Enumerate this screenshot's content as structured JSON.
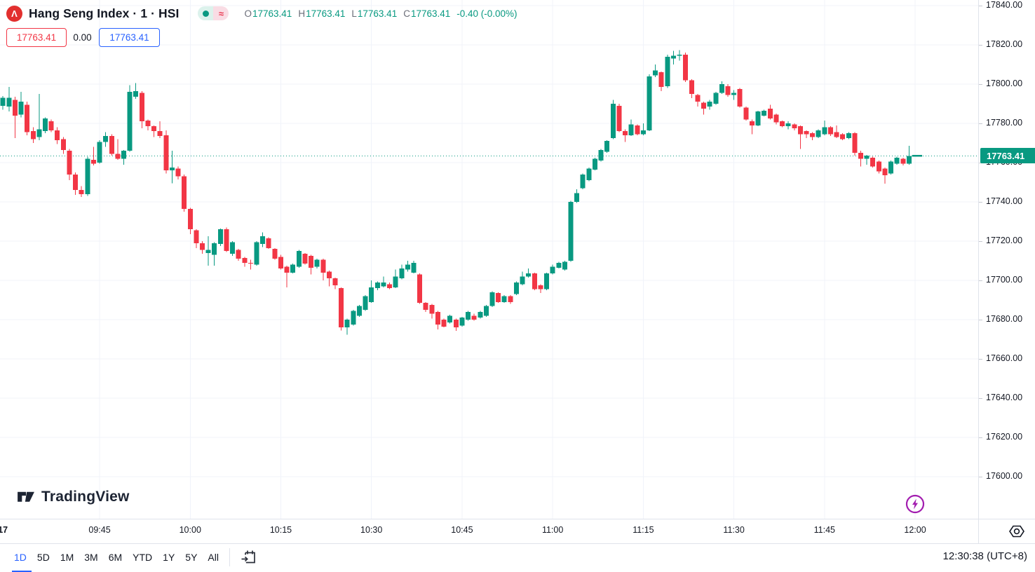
{
  "header": {
    "title": "Hang Seng Index · 1 · HSI",
    "logo_letter": "Λ",
    "status_pill": {
      "approx": "≈"
    },
    "ohlc": {
      "o_label": "O",
      "o": "17763.41",
      "h_label": "H",
      "h": "17763.41",
      "l_label": "L",
      "l": "17763.41",
      "c_label": "C",
      "c": "17763.41",
      "change": "-0.40 (-0.00%)"
    },
    "bid": "17763.41",
    "spread": "0.00",
    "ask": "17763.41"
  },
  "footer": {
    "brand": "TradingView"
  },
  "status": {
    "clock": "12:30:38 (UTC+8)"
  },
  "toolbar": {
    "ranges": [
      "1D",
      "5D",
      "1M",
      "3M",
      "6M",
      "YTD",
      "1Y",
      "5Y",
      "All"
    ],
    "active": "1D"
  },
  "colors": {
    "up": "#089981",
    "down": "#F23645",
    "grid": "#F0F3FA",
    "blue": "#2962FF",
    "red": "#F23645",
    "purple": "#A21CAF",
    "text": "#131722",
    "muted": "#787B86"
  },
  "chart_data": {
    "type": "candlestick",
    "title": "Hang Seng Index 1-minute candles",
    "symbol": "HSI",
    "interval_minutes": 1,
    "session_start": "09:30",
    "last_price": 17763.41,
    "last_price_label": "17763.41",
    "ylim": [
      17590,
      17842
    ],
    "grid": true,
    "price_labels": [
      "17840.00",
      "17820.00",
      "17800.00",
      "17780.00",
      "17760.00",
      "17740.00",
      "17720.00",
      "17700.00",
      "17680.00",
      "17660.00",
      "17640.00",
      "17620.00",
      "17600.00"
    ],
    "x_ticks": [
      {
        "label": "17",
        "minute": -1,
        "day_marker": true
      },
      {
        "label": "09:45",
        "minute": 15
      },
      {
        "label": "10:00",
        "minute": 30
      },
      {
        "label": "10:15",
        "minute": 45
      },
      {
        "label": "10:30",
        "minute": 60
      },
      {
        "label": "10:45",
        "minute": 75
      },
      {
        "label": "11:00",
        "minute": 90
      },
      {
        "label": "11:15",
        "minute": 105
      },
      {
        "label": "11:30",
        "minute": 120
      },
      {
        "label": "11:45",
        "minute": 135
      },
      {
        "label": "12:00",
        "minute": 150
      }
    ],
    "first_minute": -1,
    "candles": [
      [
        17789,
        17794,
        17787,
        17793
      ],
      [
        17788.5,
        17798.5,
        17786,
        17793
      ],
      [
        17792,
        17793.5,
        17772.5,
        17784
      ],
      [
        17784.5,
        17796,
        17783,
        17791
      ],
      [
        17789.5,
        17791,
        17774,
        17775.5
      ],
      [
        17776,
        17778,
        17770,
        17772
      ],
      [
        17773,
        17795,
        17771.5,
        17777
      ],
      [
        17776,
        17783,
        17775,
        17782.5
      ],
      [
        17781,
        17782,
        17775.5,
        17776.5
      ],
      [
        17776.5,
        17778,
        17769.5,
        17771.5
      ],
      [
        17772,
        17773,
        17764.5,
        17766.5
      ],
      [
        17766,
        17767,
        17751,
        17754
      ],
      [
        17754,
        17755,
        17743.5,
        17746
      ],
      [
        17746,
        17748,
        17742.5,
        17744
      ],
      [
        17744,
        17763,
        17743,
        17762
      ],
      [
        17761.5,
        17768,
        17758.5,
        17759.5
      ],
      [
        17760,
        17771.5,
        17759.5,
        17770.5
      ],
      [
        17770.5,
        17775.5,
        17768,
        17773.5
      ],
      [
        17773.5,
        17774.5,
        17763.5,
        17764.5
      ],
      [
        17764.5,
        17772,
        17761.5,
        17762
      ],
      [
        17762,
        17766.5,
        17759,
        17766
      ],
      [
        17766,
        17799.5,
        17765.5,
        17796
      ],
      [
        17793.5,
        17800.5,
        17792.5,
        17796.5
      ],
      [
        17795.5,
        17796.5,
        17777.5,
        17781
      ],
      [
        17781.5,
        17782,
        17776.5,
        17778.5
      ],
      [
        17778.5,
        17779,
        17773,
        17776
      ],
      [
        17776,
        17781,
        17772.5,
        17773.5
      ],
      [
        17774,
        17776.5,
        17754.5,
        17756
      ],
      [
        17756,
        17766,
        17749.5,
        17757.5
      ],
      [
        17757,
        17758,
        17751.5,
        17753
      ],
      [
        17753,
        17754,
        17735,
        17736.5
      ],
      [
        17736.5,
        17737,
        17723.5,
        17726
      ],
      [
        17725.5,
        17726,
        17716.5,
        17719
      ],
      [
        17719,
        17720,
        17713.5,
        17715.5
      ],
      [
        17714,
        17722.5,
        17707.5,
        17715.5
      ],
      [
        17713,
        17719.5,
        17707.5,
        17719
      ],
      [
        17718.5,
        17726.5,
        17717.5,
        17726
      ],
      [
        17726,
        17727,
        17714.5,
        17715
      ],
      [
        17713.5,
        17720,
        17712.5,
        17719.5
      ],
      [
        17715.5,
        17716,
        17710,
        17711
      ],
      [
        17711.5,
        17712,
        17707,
        17709
      ],
      [
        17709,
        17710.5,
        17705.5,
        17708.5
      ],
      [
        17708,
        17720,
        17707.5,
        17719.5
      ],
      [
        17718.5,
        17724.5,
        17717,
        17722.5
      ],
      [
        17721.5,
        17722,
        17716,
        17716.5
      ],
      [
        17716,
        17716.5,
        17710.5,
        17711
      ],
      [
        17712,
        17713,
        17705.5,
        17706
      ],
      [
        17707,
        17707.5,
        17696.5,
        17704
      ],
      [
        17704,
        17708.5,
        17703.5,
        17708
      ],
      [
        17707,
        17715.5,
        17706.5,
        17715
      ],
      [
        17713.5,
        17714,
        17708,
        17708.5
      ],
      [
        17712.5,
        17713,
        17703,
        17706.5
      ],
      [
        17707,
        17711,
        17706,
        17710.5
      ],
      [
        17710.5,
        17711,
        17700,
        17704
      ],
      [
        17704.5,
        17705,
        17697,
        17701
      ],
      [
        17701,
        17701.5,
        17695.5,
        17697.5
      ],
      [
        17696,
        17696.5,
        17674.5,
        17676
      ],
      [
        17676,
        17680.5,
        17672.4,
        17680
      ],
      [
        17677.5,
        17685,
        17677,
        17684.5
      ],
      [
        17682,
        17687.5,
        17681.5,
        17687
      ],
      [
        17685,
        17692.5,
        17684.5,
        17692
      ],
      [
        17689,
        17700,
        17688.5,
        17696.5
      ],
      [
        17696,
        17699.5,
        17695,
        17699
      ],
      [
        17697,
        17702,
        17696.5,
        17699
      ],
      [
        17698,
        17699,
        17695.5,
        17696
      ],
      [
        17696.5,
        17705.5,
        17696,
        17702
      ],
      [
        17701,
        17708,
        17700.5,
        17706
      ],
      [
        17705.5,
        17710,
        17704.5,
        17708
      ],
      [
        17704,
        17710,
        17703.5,
        17709
      ],
      [
        17703,
        17703.5,
        17688,
        17688.5
      ],
      [
        17688.5,
        17689,
        17684,
        17685
      ],
      [
        17687.5,
        17688,
        17680.5,
        17683
      ],
      [
        17684,
        17684.5,
        17675,
        17677.5
      ],
      [
        17680,
        17680.5,
        17676,
        17676.5
      ],
      [
        17678.5,
        17682.5,
        17678,
        17682
      ],
      [
        17680,
        17680.5,
        17674.3,
        17676
      ],
      [
        17677,
        17681.5,
        17676.5,
        17681
      ],
      [
        17680,
        17684.5,
        17679.5,
        17684
      ],
      [
        17682,
        17683,
        17679.5,
        17680
      ],
      [
        17681,
        17684.5,
        17680.5,
        17684
      ],
      [
        17682,
        17687.5,
        17681.5,
        17687
      ],
      [
        17687,
        17694.5,
        17686.5,
        17694
      ],
      [
        17693.5,
        17694,
        17688.5,
        17689
      ],
      [
        17689,
        17692.5,
        17688.5,
        17692
      ],
      [
        17692,
        17692.5,
        17688,
        17689
      ],
      [
        17693,
        17699.5,
        17692.5,
        17699
      ],
      [
        17698,
        17704.5,
        17697.5,
        17702
      ],
      [
        17702,
        17706,
        17701.5,
        17703.5
      ],
      [
        17703.5,
        17704,
        17695,
        17695.5
      ],
      [
        17697.5,
        17698,
        17693.5,
        17695.5
      ],
      [
        17695.5,
        17704,
        17695,
        17703.5
      ],
      [
        17703.5,
        17708,
        17703,
        17707
      ],
      [
        17706.5,
        17709.5,
        17706,
        17709
      ],
      [
        17705.5,
        17710,
        17705,
        17709.5
      ],
      [
        17710,
        17740.5,
        17709.5,
        17740
      ],
      [
        17740,
        17746.5,
        17739.5,
        17744.5
      ],
      [
        17747,
        17754.5,
        17746.5,
        17754
      ],
      [
        17751,
        17757.5,
        17750.5,
        17757
      ],
      [
        17756.5,
        17762.5,
        17756,
        17762
      ],
      [
        17761,
        17767,
        17760.5,
        17766.5
      ],
      [
        17765.5,
        17771.5,
        17765,
        17771
      ],
      [
        17772.5,
        17792,
        17772,
        17790
      ],
      [
        17789,
        17790,
        17775.5,
        17776
      ],
      [
        17776,
        17777,
        17770.5,
        17774
      ],
      [
        17774,
        17782,
        17773.5,
        17779.5
      ],
      [
        17779,
        17779.5,
        17774,
        17774.5
      ],
      [
        17774.5,
        17780,
        17774,
        17776.5
      ],
      [
        17776.5,
        17805,
        17776,
        17804
      ],
      [
        17804.5,
        17810,
        17803.5,
        17807
      ],
      [
        17806,
        17806.5,
        17796.5,
        17798.5
      ],
      [
        17799,
        17815,
        17798,
        17814
      ],
      [
        17813,
        17817,
        17810,
        17814.5
      ],
      [
        17814.5,
        17817.4,
        17812,
        17815
      ],
      [
        17815,
        17816,
        17801,
        17802
      ],
      [
        17802,
        17802.5,
        17792.9,
        17795
      ],
      [
        17794.5,
        17795,
        17788.5,
        17791
      ],
      [
        17790.5,
        17791,
        17784.5,
        17787.5
      ],
      [
        17788.5,
        17792,
        17787,
        17791
      ],
      [
        17790,
        17796,
        17789.5,
        17795.5
      ],
      [
        17795.5,
        17801.5,
        17795,
        17800
      ],
      [
        17799,
        17800,
        17793.5,
        17794.5
      ],
      [
        17794.5,
        17797,
        17792,
        17795.5
      ],
      [
        17797.5,
        17798,
        17788,
        17788.5
      ],
      [
        17788,
        17788.5,
        17781.5,
        17782
      ],
      [
        17781,
        17782,
        17774.5,
        17779
      ],
      [
        17779,
        17786.5,
        17778.5,
        17786
      ],
      [
        17784,
        17787,
        17783.5,
        17786.5
      ],
      [
        17787.5,
        17789.5,
        17782,
        17782.5
      ],
      [
        17784.5,
        17785,
        17779.5,
        17780.5
      ],
      [
        17781,
        17781.5,
        17778,
        17778.5
      ],
      [
        17778.5,
        17781,
        17777,
        17780
      ],
      [
        17779.5,
        17780,
        17776.5,
        17777.5
      ],
      [
        17778.5,
        17779,
        17767,
        17774.5
      ],
      [
        17776,
        17776.5,
        17772.5,
        17774.5
      ],
      [
        17775,
        17775.5,
        17771.5,
        17773
      ],
      [
        17773,
        17777,
        17772.5,
        17776.5
      ],
      [
        17774.5,
        17781.5,
        17774,
        17778
      ],
      [
        17778,
        17778.5,
        17773.5,
        17774.5
      ],
      [
        17775.5,
        17779,
        17772.5,
        17773
      ],
      [
        17774.5,
        17775,
        17771.5,
        17772
      ],
      [
        17772.5,
        17775.5,
        17772,
        17775
      ],
      [
        17775,
        17775.5,
        17763.5,
        17765
      ],
      [
        17765,
        17766,
        17758,
        17762
      ],
      [
        17762,
        17764,
        17759,
        17763.5
      ],
      [
        17762.5,
        17763,
        17757.5,
        17758
      ],
      [
        17760.5,
        17761,
        17754.5,
        17755.5
      ],
      [
        17757,
        17757.5,
        17749.3,
        17753.5
      ],
      [
        17754.5,
        17761,
        17754,
        17760.5
      ],
      [
        17759.5,
        17763,
        17759,
        17762.5
      ],
      [
        17762,
        17762.5,
        17758.5,
        17759.5
      ],
      [
        17759.5,
        17768.5,
        17759,
        17763.41
      ]
    ]
  }
}
